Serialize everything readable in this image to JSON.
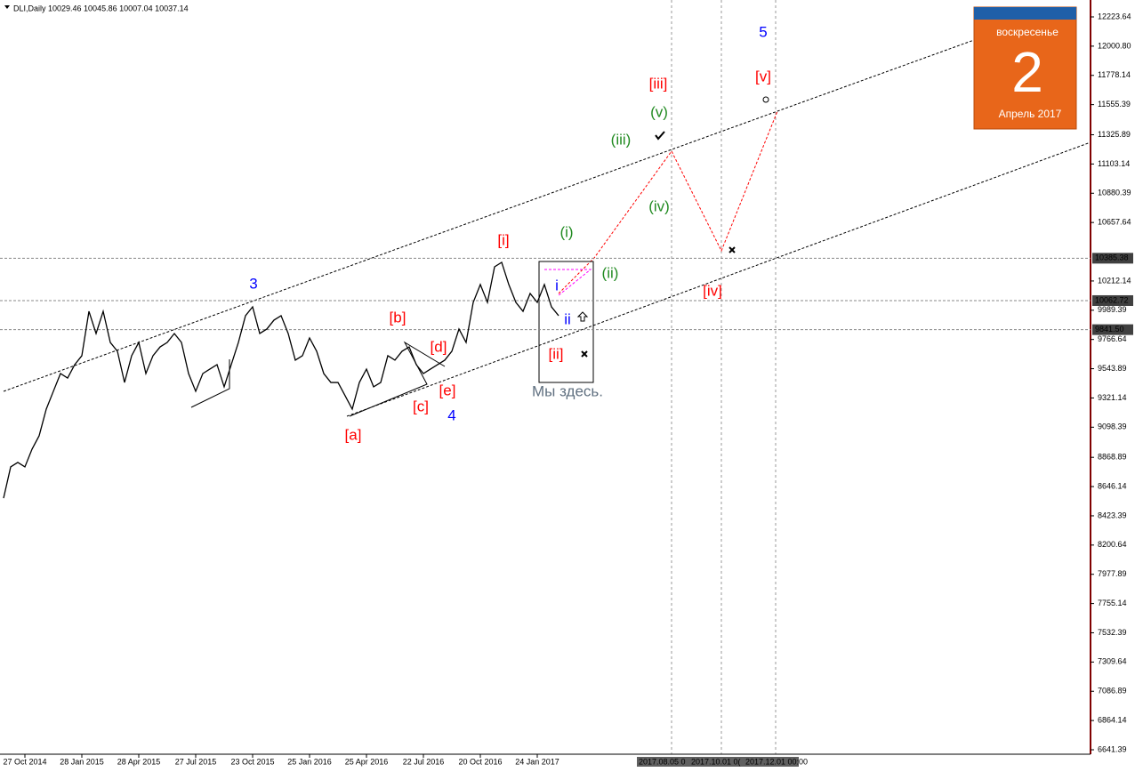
{
  "chart_data": {
    "type": "line",
    "title": "DLI,Daily  10029.46 10045.86 10007.04 10037.14",
    "categories": [
      null,
      null,
      null,
      "27 Oct 2014",
      null,
      null,
      null,
      null,
      null,
      null,
      null,
      "28 Jan 2015",
      null,
      null,
      null,
      null,
      null,
      null,
      null,
      "28 Apr 2015",
      null,
      null,
      null,
      null,
      null,
      null,
      null,
      "27 Jul 2015",
      null,
      null,
      null,
      null,
      null,
      null,
      null,
      "23 Oct 2015",
      null,
      null,
      null,
      null,
      null,
      null,
      null,
      "25 Jan 2016",
      null,
      null,
      null,
      null,
      null,
      null,
      null,
      "25 Apr 2016",
      null,
      null,
      null,
      null,
      null,
      null,
      null,
      "22 Jul 2016",
      null,
      null,
      null,
      null,
      null,
      null,
      null,
      "20 Oct 2016",
      null,
      null,
      null,
      null,
      null,
      null,
      null,
      "24 Jan 2017",
      null,
      null,
      null
    ],
    "series": [
      {
        "name": "DLI",
        "color": "#000000",
        "values": [
          8558,
          8796,
          8830,
          8796,
          8931,
          9033,
          9236,
          9372,
          9507,
          9473,
          9575,
          9643,
          9981,
          9812,
          9981,
          9744,
          9677,
          9439,
          9643,
          9744,
          9507,
          9643,
          9710,
          9744,
          9812,
          9744,
          9507,
          9372,
          9507,
          9541,
          9575,
          9406,
          9575,
          9744,
          9948,
          10015,
          9812,
          9846,
          9914,
          9948,
          9812,
          9609,
          9643,
          9778,
          9677,
          9507,
          9439,
          9439,
          9338,
          9236,
          9439,
          9541,
          9406,
          9439,
          9643,
          9609,
          9677,
          9710,
          9575,
          9507,
          9541,
          9575,
          9609,
          9677,
          9846,
          9744,
          10049,
          10185,
          10049,
          10320,
          10354,
          10185,
          10049,
          9981,
          10117,
          10049,
          10185,
          10015,
          9948
        ]
      }
    ],
    "ylim": [
      6641.39,
      12223.64
    ],
    "yticks": [
      12223.64,
      {
        "value": 12000.8,
        "label": "12000.80"
      },
      11778.14,
      11555.39,
      11325.89,
      11103.14,
      10880.39,
      10657.64,
      10212.14,
      9989.39,
      9766.64,
      9543.89,
      9321.14,
      9098.39,
      8868.89,
      8646.14,
      8423.39,
      8200.64,
      7977.89,
      7755.14,
      7532.39,
      7309.64,
      7086.89,
      6864.14,
      6641.39
    ],
    "levels": [
      {
        "value": 10385.38,
        "label": "10385.38"
      },
      {
        "value": 10062.72,
        "label": "10062.72"
      },
      {
        "value": 9841.5,
        "label": "9841.50"
      }
    ],
    "future_labels": [
      "2017.08.05 0",
      "2017.10.01 0(",
      "2017.12.01 00:00"
    ],
    "annotations": [
      {
        "text": "3",
        "color": "#0000ff"
      },
      {
        "text": "4",
        "color": "#0000ff"
      },
      {
        "text": "5",
        "color": "#0000ff"
      },
      {
        "text": "[a]",
        "color": "#ff0000"
      },
      {
        "text": "[b]",
        "color": "#ff0000"
      },
      {
        "text": "[c]",
        "color": "#ff0000"
      },
      {
        "text": "[d]",
        "color": "#ff0000"
      },
      {
        "text": "[e]",
        "color": "#ff0000"
      },
      {
        "text": "[i]",
        "color": "#ff0000"
      },
      {
        "text": "[ii]",
        "color": "#ff0000"
      },
      {
        "text": "[iii]",
        "color": "#ff0000"
      },
      {
        "text": "[iv]",
        "color": "#ff0000"
      },
      {
        "text": "[v]",
        "color": "#ff0000"
      },
      {
        "text": "(i)",
        "color": "#228b22"
      },
      {
        "text": "(ii)",
        "color": "#228b22"
      },
      {
        "text": "(iii)",
        "color": "#228b22"
      },
      {
        "text": "(iv)",
        "color": "#228b22"
      },
      {
        "text": "(v)",
        "color": "#228b22"
      },
      {
        "text": "i",
        "color": "#0000ff"
      },
      {
        "text": "ii",
        "color": "#0000ff"
      },
      {
        "text": "Мы здесь.",
        "color": "#607080"
      }
    ],
    "calendar": {
      "weekday": "воскресенье",
      "day": "2",
      "month": "Апрель 2017"
    }
  }
}
